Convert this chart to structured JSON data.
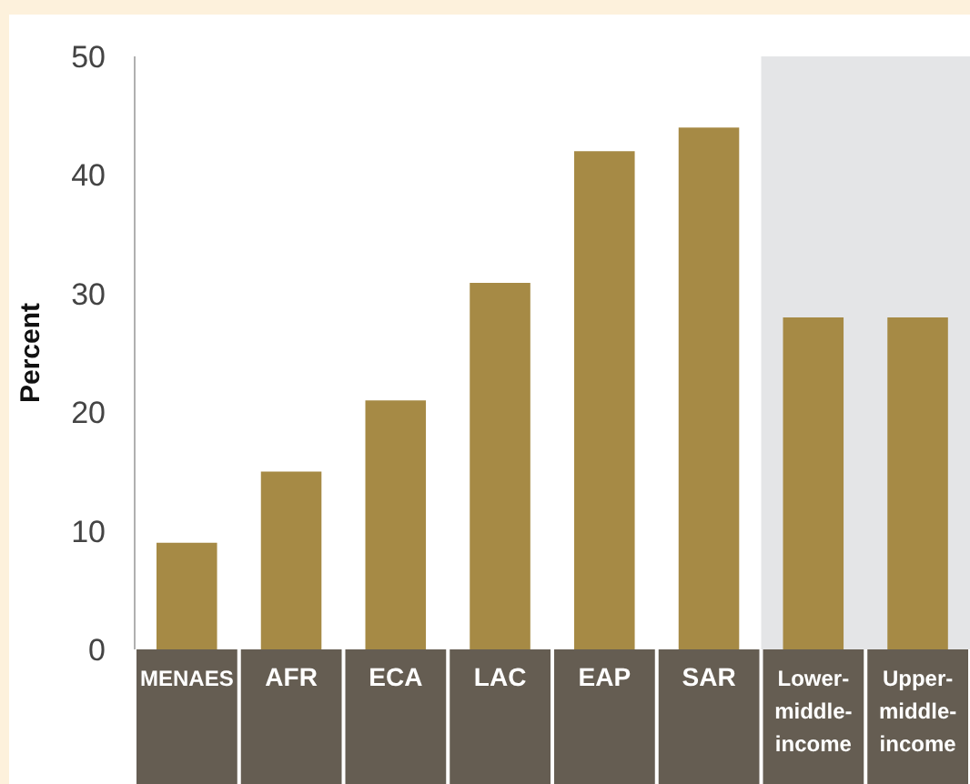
{
  "chart_data": {
    "type": "bar",
    "ylabel": "Percent",
    "categories": [
      "MENAES",
      "AFR",
      "ECA",
      "LAC",
      "EAP",
      "SAR",
      "Lower-middle-income",
      "Upper-middle-income"
    ],
    "values": [
      9.0,
      15.0,
      21.0,
      30.9,
      42.0,
      44.0,
      28.0,
      28.0
    ],
    "color": "#a68a45",
    "ylim": [
      0,
      50
    ],
    "yticks": [
      0,
      10,
      20,
      30,
      40,
      50
    ],
    "bands": [
      {
        "axis": "x",
        "from": "Lower-middle-income",
        "to": "Upper-middle-income",
        "color": "#e4e5e7"
      }
    ],
    "grid": false,
    "legend": false
  }
}
